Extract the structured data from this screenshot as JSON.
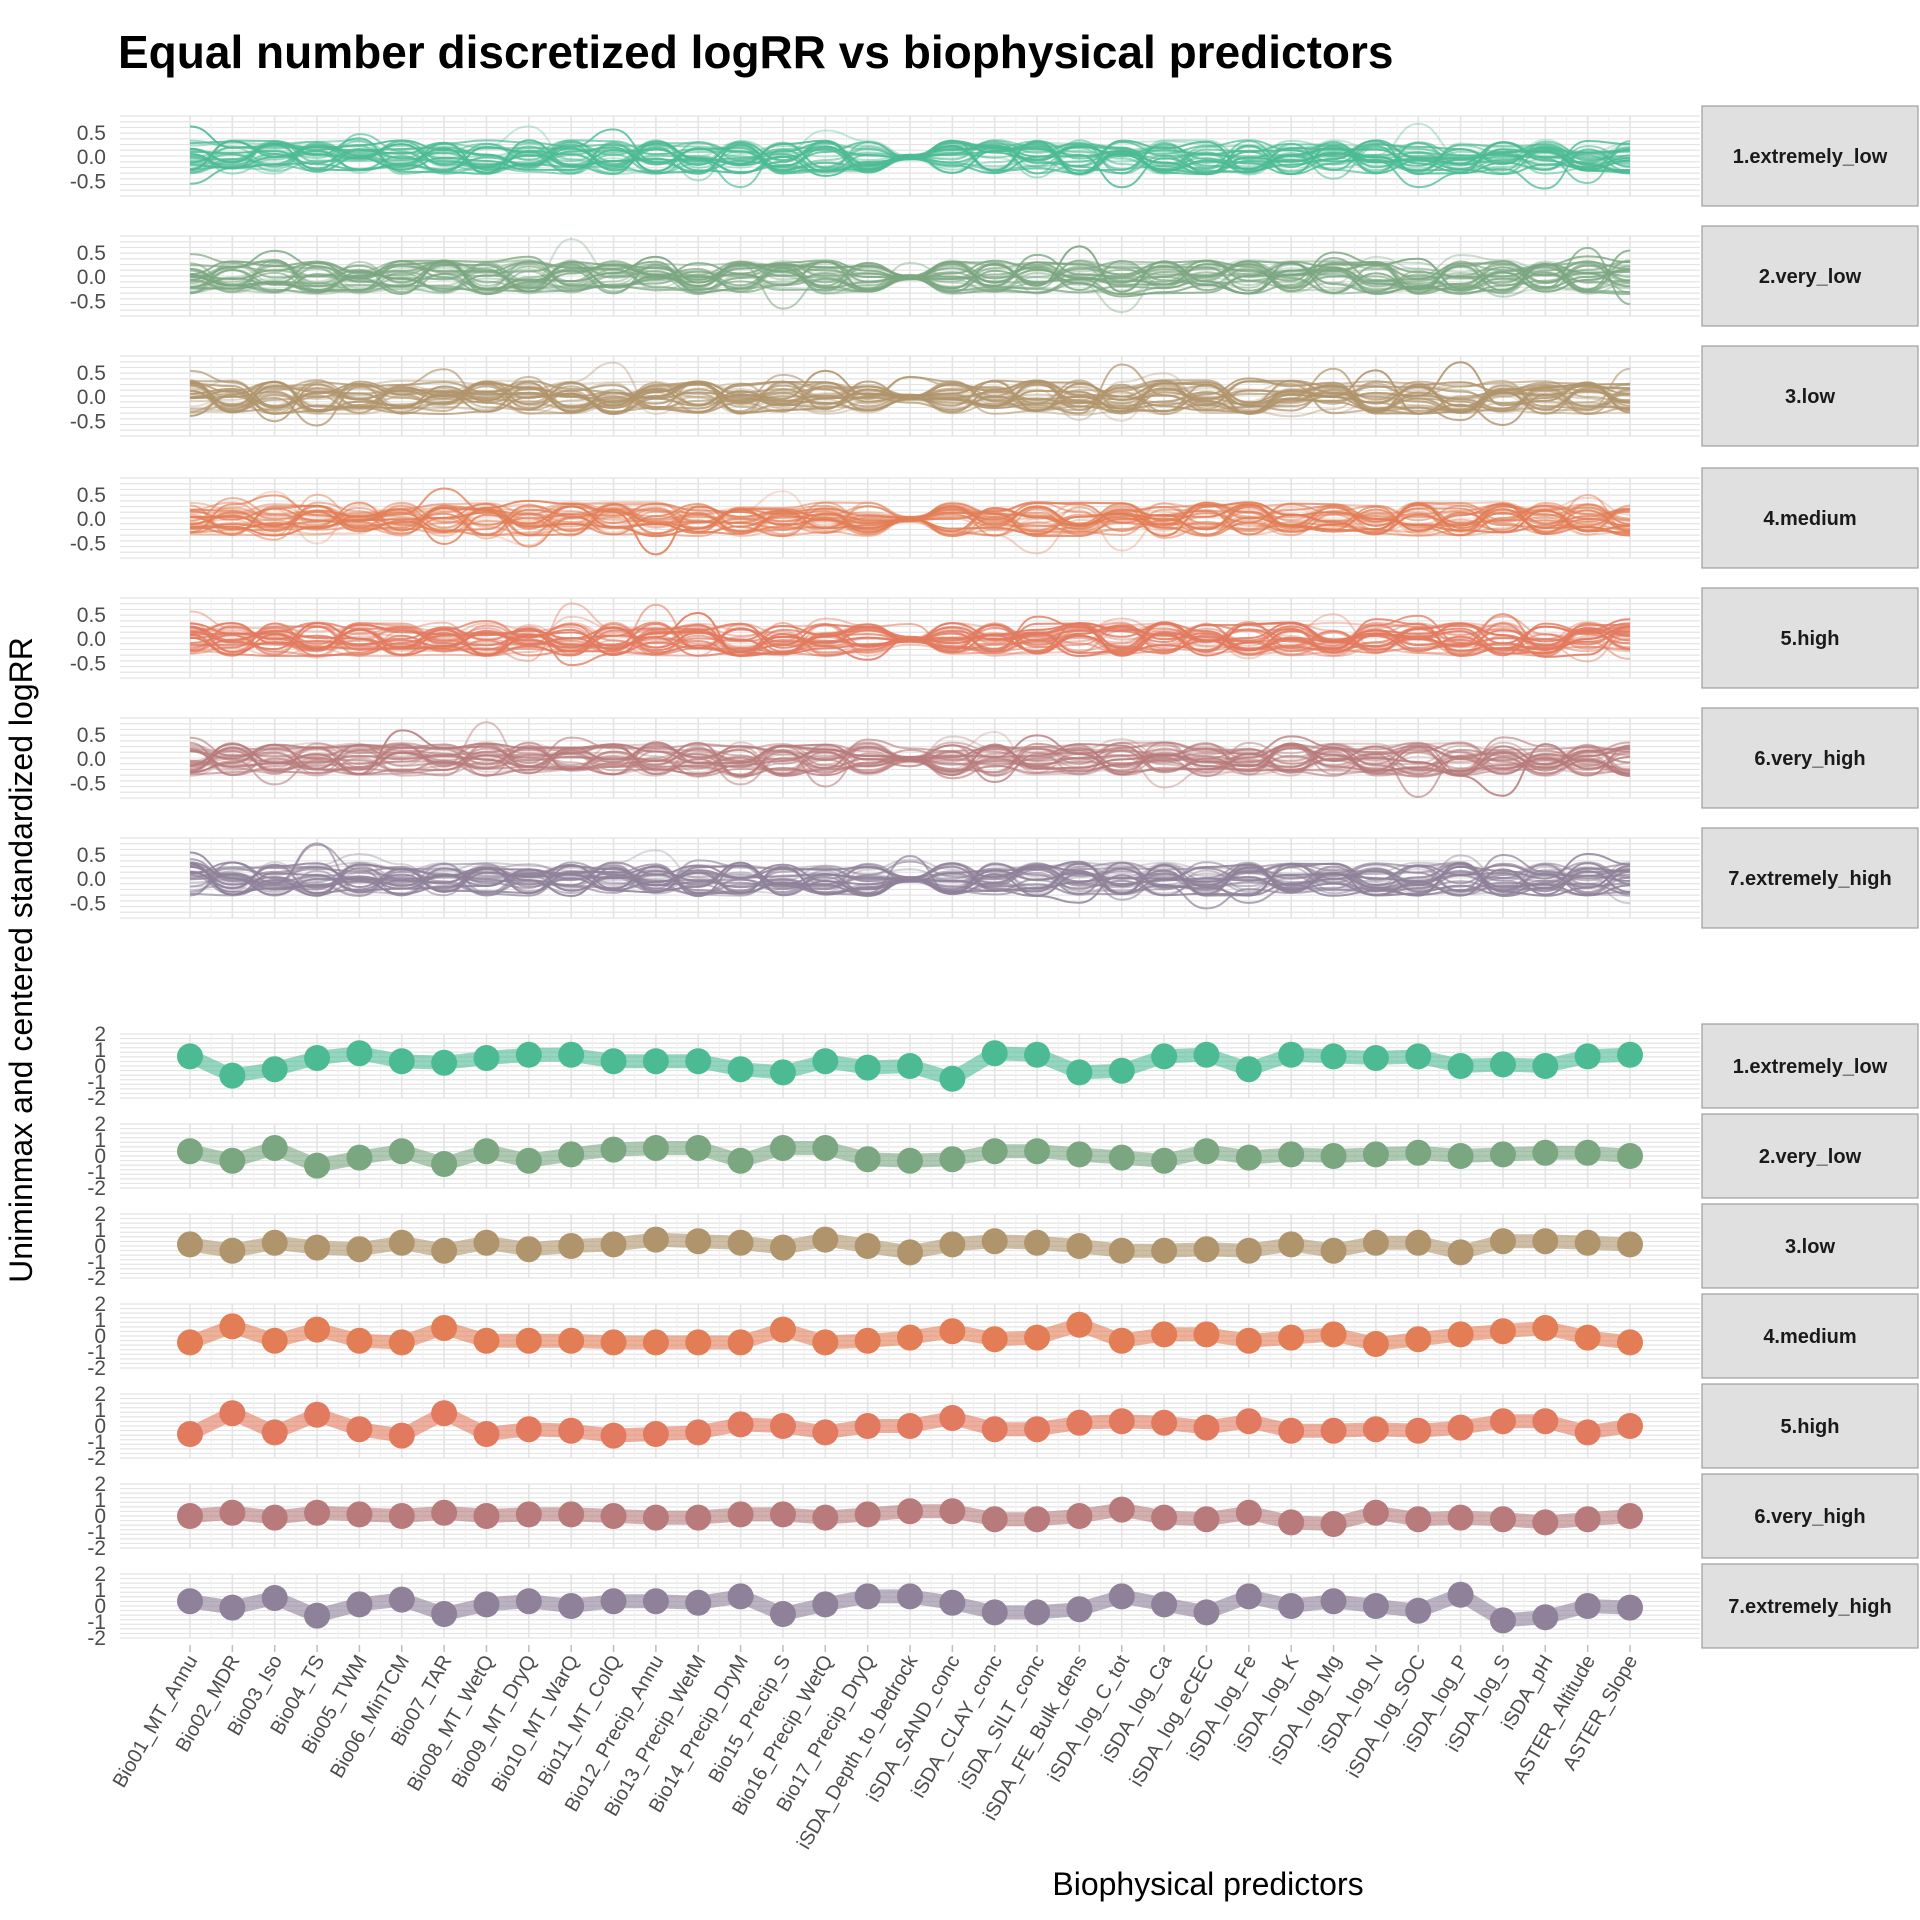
{
  "chart_data": {
    "type": "line",
    "title": "Equal number discretized logRR vs biophysical predictors",
    "ylabel": "Uniminmax and centered standardized logRR",
    "xlabel": "Biophysical predictors",
    "categories": [
      "Bio01_MT_Annu",
      "Bio02_MDR",
      "Bio03_Iso",
      "Bio04_TS",
      "Bio05_TWM",
      "Bio06_MinTCM",
      "Bio07_TAR",
      "Bio08_MT_WetQ",
      "Bio09_MT_DryQ",
      "Bio10_MT_WarQ",
      "Bio11_MT_ColQ",
      "Bio12_Precip_Annu",
      "Bio13_Precip_WetM",
      "Bio14_Precip_DryM",
      "Bio15_Precip_S",
      "Bio16_Precip_WetQ",
      "Bio17_Precip_DryQ",
      "iSDA_Depth_to_bedrock",
      "iSDA_SAND_conc",
      "iSDA_CLAY_conc",
      "iSDA_SILT_conc",
      "iSDA_FE_Bulk_dens",
      "iSDA_log_C_tot",
      "iSDA_log_Ca",
      "iSDA_log_eCEC",
      "iSDA_log_Fe",
      "iSDA_log_K",
      "iSDA_log_Mg",
      "iSDA_log_N",
      "iSDA_log_SOC",
      "iSDA_log_P",
      "iSDA_log_S",
      "iSDA_pH",
      "ASTER_Altitude",
      "ASTER_Slope"
    ],
    "groups": [
      "1.extremely_low",
      "2.very_low",
      "3.low",
      "4.medium",
      "5.high",
      "6.very_high",
      "7.extremely_high"
    ],
    "colors": [
      "#4cbb94",
      "#7aa680",
      "#b0946c",
      "#e27d55",
      "#e27a5f",
      "#b87a7a",
      "#8e8199"
    ],
    "top_panels": {
      "ylim": [
        -0.8,
        0.85
      ],
      "yticks": [
        "0.5",
        "0.0",
        "-0.5"
      ],
      "description": "many individual standardized logRR lines per group"
    },
    "bottom_panels": {
      "ylim": [
        -2,
        2
      ],
      "yticks": [
        "2",
        "1",
        "0",
        "-1",
        "-2"
      ],
      "series": [
        {
          "name": "1.extremely_low",
          "values": [
            0.6,
            -0.6,
            -0.2,
            0.5,
            0.8,
            0.3,
            0.2,
            0.5,
            0.7,
            0.7,
            0.3,
            0.3,
            0.3,
            -0.2,
            -0.4,
            0.3,
            -0.1,
            0.0,
            -0.8,
            0.8,
            0.7,
            -0.4,
            -0.3,
            0.6,
            0.7,
            -0.2,
            0.7,
            0.6,
            0.5,
            0.6,
            0.0,
            0.1,
            0.0,
            0.6,
            0.7
          ]
        },
        {
          "name": "2.very_low",
          "values": [
            0.3,
            -0.3,
            0.5,
            -0.6,
            -0.1,
            0.3,
            -0.5,
            0.3,
            -0.3,
            0.1,
            0.4,
            0.5,
            0.5,
            -0.3,
            0.5,
            0.5,
            -0.2,
            -0.3,
            -0.2,
            0.3,
            0.3,
            0.1,
            -0.1,
            -0.3,
            0.3,
            -0.1,
            0.1,
            0.0,
            0.1,
            0.2,
            0.0,
            0.1,
            0.2,
            0.2,
            0.0
          ]
        },
        {
          "name": "3.low",
          "values": [
            0.1,
            -0.3,
            0.2,
            -0.1,
            -0.2,
            0.2,
            -0.3,
            0.2,
            -0.2,
            0.0,
            0.1,
            0.4,
            0.3,
            0.2,
            -0.1,
            0.4,
            0.0,
            -0.4,
            0.1,
            0.3,
            0.2,
            0.0,
            -0.3,
            -0.3,
            -0.2,
            -0.3,
            0.1,
            -0.3,
            0.2,
            0.2,
            -0.4,
            0.3,
            0.3,
            0.2,
            0.1
          ]
        },
        {
          "name": "4.medium",
          "values": [
            -0.4,
            0.6,
            -0.3,
            0.4,
            -0.3,
            -0.4,
            0.5,
            -0.3,
            -0.3,
            -0.3,
            -0.4,
            -0.4,
            -0.4,
            -0.4,
            0.4,
            -0.4,
            -0.3,
            -0.1,
            0.3,
            -0.2,
            -0.1,
            0.7,
            -0.3,
            0.1,
            0.1,
            -0.3,
            -0.1,
            0.1,
            -0.5,
            -0.2,
            0.1,
            0.3,
            0.5,
            -0.1,
            -0.4
          ]
        },
        {
          "name": "5.high",
          "values": [
            -0.5,
            0.8,
            -0.4,
            0.7,
            -0.2,
            -0.6,
            0.8,
            -0.5,
            -0.2,
            -0.3,
            -0.6,
            -0.5,
            -0.4,
            0.1,
            0.0,
            -0.4,
            0.0,
            0.0,
            0.5,
            -0.2,
            -0.2,
            0.2,
            0.3,
            0.2,
            -0.1,
            0.3,
            -0.3,
            -0.3,
            -0.2,
            -0.3,
            -0.1,
            0.3,
            0.3,
            -0.4,
            0.0
          ]
        },
        {
          "name": "6.very_high",
          "values": [
            0.0,
            0.2,
            -0.1,
            0.2,
            0.1,
            0.0,
            0.2,
            0.0,
            0.1,
            0.1,
            0.0,
            -0.1,
            -0.1,
            0.1,
            0.1,
            -0.1,
            0.1,
            0.3,
            0.3,
            -0.2,
            -0.2,
            0.0,
            0.4,
            -0.1,
            -0.2,
            0.2,
            -0.4,
            -0.5,
            0.2,
            -0.2,
            -0.1,
            -0.2,
            -0.4,
            -0.2,
            0.0
          ]
        },
        {
          "name": "7.extremely_high",
          "values": [
            0.3,
            -0.1,
            0.5,
            -0.6,
            0.1,
            0.4,
            -0.5,
            0.1,
            0.3,
            0.0,
            0.3,
            0.3,
            0.2,
            0.6,
            -0.5,
            0.1,
            0.6,
            0.6,
            0.2,
            -0.4,
            -0.4,
            -0.2,
            0.6,
            0.1,
            -0.4,
            0.6,
            0.0,
            0.3,
            0.0,
            -0.3,
            0.7,
            -0.9,
            -0.7,
            0.0,
            -0.1
          ]
        }
      ]
    }
  }
}
